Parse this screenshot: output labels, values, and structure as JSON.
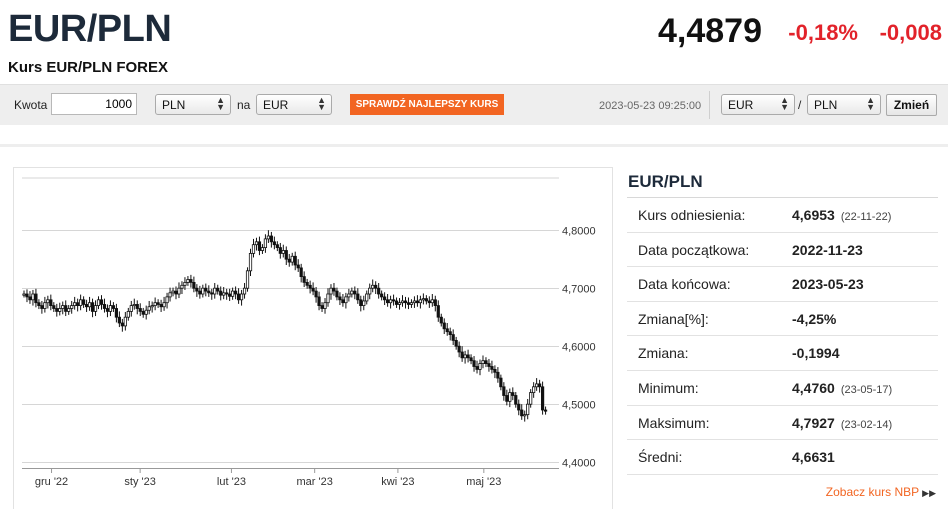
{
  "header": {
    "title": "EUR/PLN",
    "subtitle": "Kurs EUR/PLN FOREX",
    "rate": "4,4879",
    "change_pct": "-0,18%",
    "change_abs": "-0,008"
  },
  "converter": {
    "amount_label": "Kwota",
    "amount_value": "1000",
    "from_currency": "PLN",
    "na_label": "na",
    "to_currency": "EUR",
    "best_rate_button": "SPRAWDŹ NAJLEPSZY KURS",
    "timestamp": "2023-05-23 09:25:00",
    "pair_base": "EUR",
    "pair_slash": "/",
    "pair_quote": "PLN",
    "change_button": "Zmień"
  },
  "stats": {
    "title": "EUR/PLN",
    "rows": [
      {
        "label": "Kurs odniesienia:",
        "value": "4,6953",
        "date": "(22-11-22)"
      },
      {
        "label": "Data początkowa:",
        "value": "2022-11-23",
        "date": ""
      },
      {
        "label": "Data końcowa:",
        "value": "2023-05-23",
        "date": ""
      },
      {
        "label": "Zmiana[%]:",
        "value": "-4,25%",
        "date": ""
      },
      {
        "label": "Zmiana:",
        "value": "-0,1994",
        "date": ""
      },
      {
        "label": "Minimum:",
        "value": "4,4760",
        "date": "(23-05-17)"
      },
      {
        "label": "Maksimum:",
        "value": "4,7927",
        "date": "(23-02-14)"
      },
      {
        "label": "Średni:",
        "value": "4,6631",
        "date": ""
      }
    ],
    "nbp_link": "Zobacz kurs NBP"
  },
  "chart_data": {
    "type": "line",
    "title": "",
    "xlabel": "",
    "ylabel": "",
    "x_ticks": [
      "gru '22",
      "sty '23",
      "lut '23",
      "mar '23",
      "kwi '23",
      "maj '23"
    ],
    "y_ticks": [
      "4,8000",
      "4,7000",
      "4,6000",
      "4,5000",
      "4,4000"
    ],
    "y_tick_values": [
      4.8,
      4.7,
      4.6,
      4.5,
      4.4
    ],
    "ylim": [
      4.39,
      4.89
    ],
    "grid": true,
    "series": [
      {
        "name": "",
        "values": [
          4.69,
          4.685,
          4.68,
          4.69,
          4.675,
          4.67,
          4.665,
          4.675,
          4.68,
          4.67,
          4.665,
          4.66,
          4.665,
          4.67,
          4.66,
          4.665,
          4.67,
          4.675,
          4.67,
          4.68,
          4.672,
          4.668,
          4.675,
          4.66,
          4.67,
          4.68,
          4.672,
          4.665,
          4.66,
          4.67,
          4.665,
          4.65,
          4.64,
          4.635,
          4.65,
          4.66,
          4.67,
          4.672,
          4.665,
          4.66,
          4.655,
          4.662,
          4.668,
          4.67,
          4.675,
          4.672,
          4.668,
          4.675,
          4.685,
          4.692,
          4.695,
          4.69,
          4.7,
          4.705,
          4.71,
          4.715,
          4.71,
          4.7,
          4.695,
          4.69,
          4.7,
          4.695,
          4.692,
          4.69,
          4.7,
          4.695,
          4.688,
          4.692,
          4.69,
          4.686,
          4.695,
          4.69,
          4.68,
          4.69,
          4.7,
          4.73,
          4.76,
          4.775,
          4.78,
          4.765,
          4.77,
          4.785,
          4.79,
          4.78,
          4.775,
          4.77,
          4.76,
          4.765,
          4.75,
          4.745,
          4.755,
          4.74,
          4.735,
          4.72,
          4.71,
          4.705,
          4.7,
          4.695,
          4.685,
          4.67,
          4.665,
          4.675,
          4.69,
          4.7,
          4.695,
          4.685,
          4.68,
          4.675,
          4.685,
          4.69,
          4.695,
          4.69,
          4.68,
          4.67,
          4.678,
          4.69,
          4.7,
          4.705,
          4.7,
          4.69,
          4.685,
          4.68,
          4.675,
          4.68,
          4.678,
          4.672,
          4.675,
          4.678,
          4.675,
          4.672,
          4.675,
          4.678,
          4.675,
          4.68,
          4.682,
          4.678,
          4.675,
          4.68,
          4.67,
          4.65,
          4.64,
          4.63,
          4.625,
          4.62,
          4.61,
          4.6,
          4.59,
          4.58,
          4.585,
          4.58,
          4.575,
          4.565,
          4.56,
          4.57,
          4.575,
          4.57,
          4.565,
          4.56,
          4.555,
          4.545,
          4.53,
          4.515,
          4.505,
          4.52,
          4.515,
          4.5,
          4.49,
          4.48,
          4.482,
          4.5,
          4.52,
          4.53,
          4.535,
          4.53,
          4.49,
          4.488
        ]
      }
    ]
  }
}
